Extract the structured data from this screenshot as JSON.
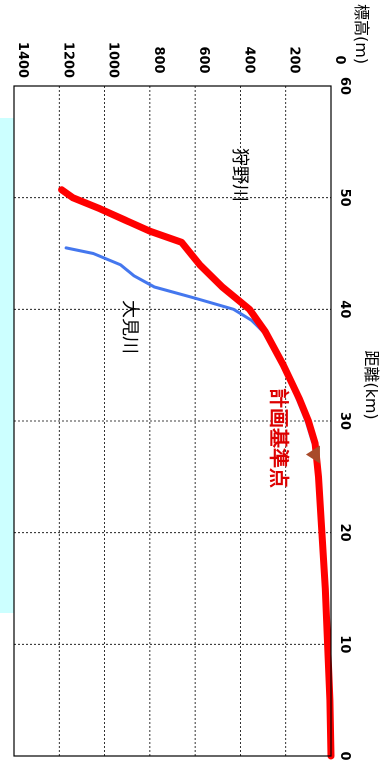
{
  "chart_data": {
    "type": "line",
    "orientation": "rotated-90-clockwise",
    "xlabel": "距離(km)",
    "ylabel": "標高(m)",
    "xlim": [
      0,
      60
    ],
    "ylim": [
      0,
      1400
    ],
    "xticks": [
      0,
      10,
      20,
      30,
      40,
      50,
      60
    ],
    "yticks": [
      0,
      200,
      400,
      600,
      800,
      1000,
      1200,
      1400
    ],
    "grid": true,
    "series": [
      {
        "name": "狩野川",
        "color": "#ff0000",
        "x": [
          0,
          5,
          10,
          15,
          20,
          25,
          28,
          30,
          32,
          35,
          38,
          40,
          42,
          44,
          46,
          47,
          48,
          49,
          50,
          50.7
        ],
        "y": [
          0,
          5,
          15,
          25,
          40,
          55,
          70,
          100,
          140,
          210,
          290,
          360,
          480,
          580,
          660,
          800,
          910,
          1020,
          1140,
          1190
        ]
      },
      {
        "name": "大見川",
        "color": "#4477ee",
        "x": [
          28,
          30,
          32,
          34,
          36,
          38,
          39,
          40,
          41,
          42,
          43,
          44,
          45,
          45.5
        ],
        "y": [
          80,
          110,
          150,
          190,
          240,
          300,
          350,
          430,
          600,
          780,
          870,
          930,
          1050,
          1170
        ]
      }
    ],
    "annotations": [
      {
        "text": "計画基準点",
        "x": 27,
        "y": 40,
        "color": "#dd0000"
      }
    ]
  },
  "colors": {
    "highlight_band": "#ccffff",
    "grid": "#000000",
    "marker": "#a84a2a"
  }
}
